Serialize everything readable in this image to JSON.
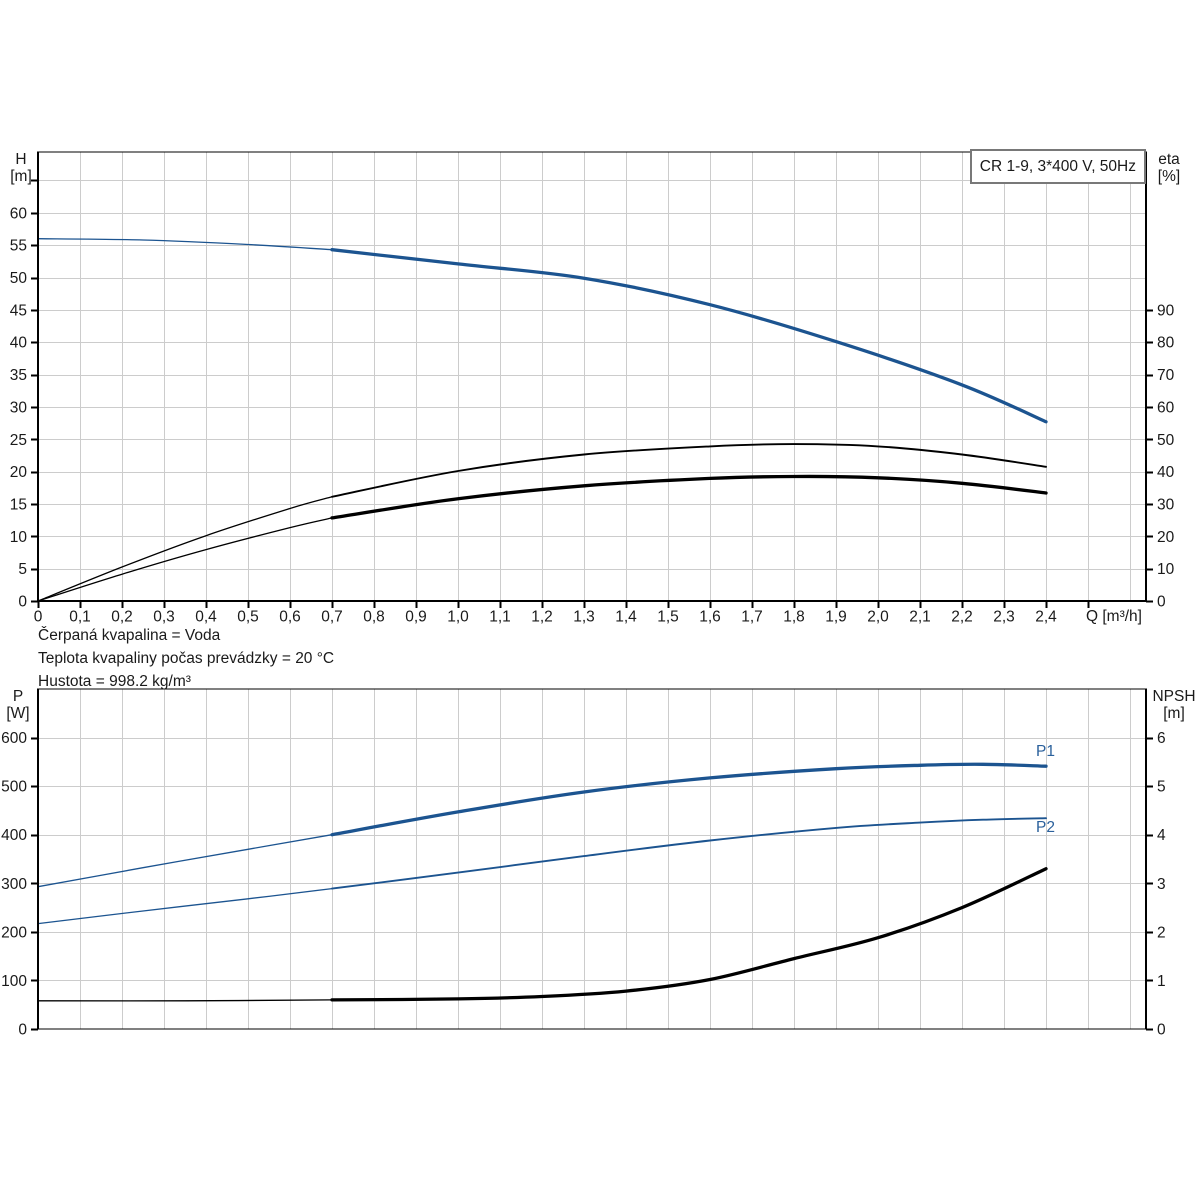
{
  "title": "CR 1-9, 3*400 V, 50Hz",
  "annotations": [
    "Čerpaná kvapalina = Voda",
    "Teplota kvapaliny počas prevádzky = 20 °C",
    "Hustota = 998.2 kg/m³"
  ],
  "axis_units": {
    "h": [
      "H",
      "[m]"
    ],
    "eta": [
      "eta",
      "[%]"
    ],
    "p": [
      "P",
      "[W]"
    ],
    "npsh": [
      "NPSH",
      "[m]"
    ],
    "q": "Q [m³/h]"
  },
  "series_labels": {
    "p1": "P1",
    "p2": "P2"
  },
  "colors": {
    "curve_blue": "#1c5490",
    "curve_black": "#000000",
    "grid": "#cccccc",
    "frame": "#000000",
    "tick_label": "#1a1a1a",
    "series_label_blue": "#2a609c",
    "title_border": "#787878"
  },
  "chart_data": [
    {
      "type": "line",
      "name": "head-efficiency",
      "x_axis": {
        "label": "Q [m³/h]",
        "min": 0,
        "max": 2.638,
        "tick_values": [
          0,
          0.1,
          0.2,
          0.3,
          0.4,
          0.5,
          0.6,
          0.7,
          0.8,
          0.9,
          1.0,
          1.1,
          1.2,
          1.3,
          1.4,
          1.5,
          1.6,
          1.7,
          1.8,
          1.9,
          2.0,
          2.1,
          2.2,
          2.3,
          2.4
        ],
        "tick_labels": [
          "0",
          "0,1",
          "0,2",
          "0,3",
          "0,4",
          "0,5",
          "0,6",
          "0,7",
          "0,8",
          "0,9",
          "1,0",
          "1,1",
          "1,2",
          "1,3",
          "1,4",
          "1,5",
          "1,6",
          "1,7",
          "1,8",
          "1,9",
          "2,0",
          "2,1",
          "2,2",
          "2,3",
          "2,4"
        ],
        "grid_step": 0.1,
        "grid_end": 2.6,
        "tick_end": 2.5
      },
      "y_left": {
        "label": "H [m]",
        "min": 0,
        "max": 69.4,
        "tick_values": [
          0,
          5,
          10,
          15,
          20,
          25,
          30,
          35,
          40,
          45,
          50,
          55,
          60,
          65
        ],
        "label_values": [
          0,
          5,
          10,
          15,
          20,
          25,
          30,
          35,
          40,
          45,
          50,
          55,
          60
        ],
        "grid_values": [
          5,
          10,
          15,
          20,
          25,
          30,
          35,
          40,
          45,
          50,
          55,
          60,
          65
        ]
      },
      "y_right": {
        "label": "eta [%]",
        "min": 0,
        "max": 138.8,
        "tick_values": [
          0,
          10,
          20,
          30,
          40,
          50,
          60,
          70,
          80,
          90
        ],
        "label_values": [
          0,
          10,
          20,
          30,
          40,
          50,
          60,
          70,
          80,
          90
        ]
      },
      "series": [
        {
          "name": "H",
          "axis": "left",
          "color": "#1c5490",
          "segments": [
            {
              "weight": "thin",
              "points": [
                [
                  0,
                  56.0
                ],
                [
                  0.25,
                  55.8
                ],
                [
                  0.5,
                  55.1
                ],
                [
                  0.7,
                  54.3
                ]
              ]
            },
            {
              "weight": "thick",
              "points": [
                [
                  0.7,
                  54.3
                ],
                [
                  1.0,
                  52.1
                ],
                [
                  1.3,
                  49.9
                ],
                [
                  1.6,
                  45.8
                ],
                [
                  1.9,
                  40.1
                ],
                [
                  2.2,
                  33.4
                ],
                [
                  2.4,
                  27.7
                ]
              ]
            }
          ]
        },
        {
          "name": "eta",
          "axis": "right",
          "color": "#000000",
          "segments": [
            {
              "weight": "thin",
              "points": [
                [
                  0,
                  0
                ],
                [
                  0.2,
                  10.5
                ],
                [
                  0.4,
                  20.2
                ],
                [
                  0.6,
                  28.6
                ],
                [
                  0.7,
                  32.2
                ]
              ]
            },
            {
              "weight": "medium",
              "points": [
                [
                  0.7,
                  32.2
                ],
                [
                  1.0,
                  40.2
                ],
                [
                  1.3,
                  45.3
                ],
                [
                  1.6,
                  47.8
                ],
                [
                  1.8,
                  48.5
                ],
                [
                  2.0,
                  47.8
                ],
                [
                  2.2,
                  45.3
                ],
                [
                  2.4,
                  41.5
                ]
              ]
            }
          ]
        },
        {
          "name": "eta-motor",
          "axis": "right",
          "color": "#000000",
          "segments": [
            {
              "weight": "thin",
              "points": [
                [
                  0,
                  0
                ],
                [
                  0.2,
                  8.3
                ],
                [
                  0.4,
                  15.9
                ],
                [
                  0.6,
                  22.7
                ],
                [
                  0.7,
                  25.7
                ]
              ]
            },
            {
              "weight": "thick",
              "points": [
                [
                  0.7,
                  25.7
                ],
                [
                  1.0,
                  31.6
                ],
                [
                  1.3,
                  35.6
                ],
                [
                  1.6,
                  37.9
                ],
                [
                  1.8,
                  38.5
                ],
                [
                  2.0,
                  38.1
                ],
                [
                  2.2,
                  36.4
                ],
                [
                  2.4,
                  33.4
                ]
              ]
            }
          ]
        }
      ]
    },
    {
      "type": "line",
      "name": "power-npsh",
      "x_axis": {
        "label": "",
        "min": 0,
        "max": 2.638,
        "tick_values": [],
        "tick_labels": [],
        "grid_step": 0.1,
        "grid_end": 2.6,
        "tick_end": 0
      },
      "y_left": {
        "label": "P [W]",
        "min": 0,
        "max": 700,
        "tick_values": [
          0,
          100,
          200,
          300,
          400,
          500,
          600
        ],
        "label_values": [
          0,
          100,
          200,
          300,
          400,
          500,
          600
        ],
        "grid_values": [
          100,
          200,
          300,
          400,
          500,
          600
        ]
      },
      "y_right": {
        "label": "NPSH [m]",
        "min": 0,
        "max": 7,
        "tick_values": [
          0,
          1,
          2,
          3,
          4,
          5,
          6
        ],
        "label_values": [
          0,
          1,
          2,
          3,
          4,
          5,
          6
        ]
      },
      "series": [
        {
          "name": "P1",
          "axis": "left",
          "color": "#1c5490",
          "label": "P1",
          "segments": [
            {
              "weight": "thin",
              "points": [
                [
                  0,
                  293
                ],
                [
                  0.25,
                  332
                ],
                [
                  0.5,
                  370
                ],
                [
                  0.7,
                  400
                ]
              ]
            },
            {
              "weight": "thick",
              "points": [
                [
                  0.7,
                  400
                ],
                [
                  1.0,
                  447
                ],
                [
                  1.3,
                  488
                ],
                [
                  1.6,
                  517
                ],
                [
                  1.9,
                  536
                ],
                [
                  2.1,
                  543
                ],
                [
                  2.25,
                  545
                ],
                [
                  2.4,
                  541
                ]
              ]
            }
          ]
        },
        {
          "name": "P2",
          "axis": "left",
          "color": "#1c5490",
          "label": "P2",
          "segments": [
            {
              "weight": "thin",
              "points": [
                [
                  0,
                  217
                ],
                [
                  0.25,
                  243
                ],
                [
                  0.5,
                  268
                ],
                [
                  0.7,
                  289
                ]
              ]
            },
            {
              "weight": "medium",
              "points": [
                [
                  0.7,
                  289
                ],
                [
                  1.0,
                  322
                ],
                [
                  1.3,
                  356
                ],
                [
                  1.6,
                  388
                ],
                [
                  1.9,
                  414
                ],
                [
                  2.1,
                  425
                ],
                [
                  2.25,
                  431
                ],
                [
                  2.4,
                  434
                ]
              ]
            }
          ]
        },
        {
          "name": "NPSH",
          "axis": "right",
          "color": "#000000",
          "segments": [
            {
              "weight": "thin",
              "points": [
                [
                  0,
                  0.58
                ],
                [
                  0.35,
                  0.58
                ],
                [
                  0.7,
                  0.6
                ]
              ]
            },
            {
              "weight": "thick",
              "points": [
                [
                  0.7,
                  0.6
                ],
                [
                  1.0,
                  0.62
                ],
                [
                  1.2,
                  0.67
                ],
                [
                  1.4,
                  0.78
                ],
                [
                  1.6,
                  1.02
                ],
                [
                  1.8,
                  1.45
                ],
                [
                  2.0,
                  1.88
                ],
                [
                  2.2,
                  2.5
                ],
                [
                  2.4,
                  3.3
                ]
              ]
            }
          ]
        }
      ]
    }
  ]
}
